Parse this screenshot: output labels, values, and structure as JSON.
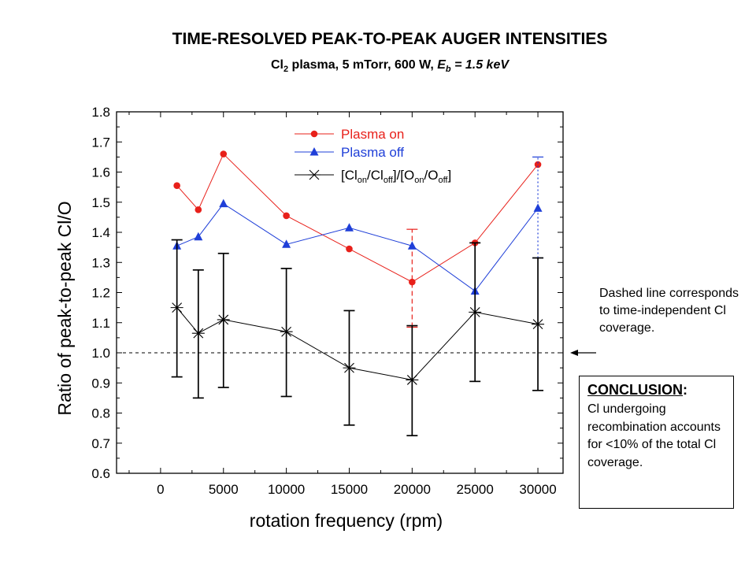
{
  "slide": {
    "title": "TIME-RESOLVED PEAK-TO-PEAK AUGER INTENSITIES",
    "subtitle_pre": "Cl",
    "subtitle_sub": "2",
    "subtitle_mid": " plasma, 5 mTorr, 600 W, ",
    "subtitle_eb": "E",
    "subtitle_eb_sub": "b",
    "subtitle_post": " = 1.5 keV",
    "note": "Dashed line corresponds to time-independent Cl coverage.",
    "conclusion_head": "CONCLUSION",
    "conclusion_colon": ":",
    "conclusion_body": "Cl undergoing recombination accounts for <10% of the total Cl coverage."
  },
  "chart_data": {
    "type": "line",
    "xlabel": "rotation frequency (rpm)",
    "ylabel": "Ratio of peak-to-peak Cl/O",
    "xlim": [
      -3500,
      32000
    ],
    "ylim": [
      0.6,
      1.8
    ],
    "xticks": [
      0,
      5000,
      10000,
      15000,
      20000,
      25000,
      30000
    ],
    "yticks": [
      0.6,
      0.7,
      0.8,
      0.9,
      1.0,
      1.1,
      1.2,
      1.3,
      1.4,
      1.5,
      1.6,
      1.7,
      1.8
    ],
    "grid": false,
    "legend_position": "top-center",
    "reference_line": {
      "y": 1.0,
      "style": "dashed"
    },
    "series": [
      {
        "name": "Plasma on",
        "color": "#e8201a",
        "marker": "circle",
        "x": [
          1300,
          3000,
          5000,
          10000,
          15000,
          20000,
          25000,
          30000
        ],
        "y": [
          1.555,
          1.475,
          1.66,
          1.455,
          1.345,
          1.235,
          1.365,
          1.625
        ],
        "errors": [
          {
            "index": 5,
            "low": 1.085,
            "high": 1.41,
            "style": "dashed"
          }
        ]
      },
      {
        "name": "Plasma off",
        "color": "#1f3fd8",
        "marker": "triangle",
        "x": [
          1300,
          3000,
          5000,
          10000,
          15000,
          20000,
          25000,
          30000
        ],
        "y": [
          1.355,
          1.385,
          1.495,
          1.36,
          1.415,
          1.355,
          1.205,
          1.48
        ],
        "errors": [
          {
            "index": 7,
            "low": 1.315,
            "high": 1.65,
            "style": "dotted"
          }
        ]
      },
      {
        "name_parts": [
          "[Cl",
          "on",
          "/Cl",
          "off",
          "]/[O",
          "on",
          "/O",
          "off",
          "]"
        ],
        "color": "#000000",
        "marker": "star",
        "x": [
          1300,
          3000,
          5000,
          10000,
          15000,
          20000,
          25000,
          30000
        ],
        "y": [
          1.15,
          1.065,
          1.11,
          1.07,
          0.95,
          0.91,
          1.135,
          1.095
        ],
        "errors_low": [
          0.92,
          0.85,
          0.885,
          0.855,
          0.76,
          0.725,
          0.905,
          0.875
        ],
        "errors_high": [
          1.375,
          1.275,
          1.33,
          1.28,
          1.14,
          1.09,
          1.365,
          1.315
        ]
      }
    ]
  }
}
